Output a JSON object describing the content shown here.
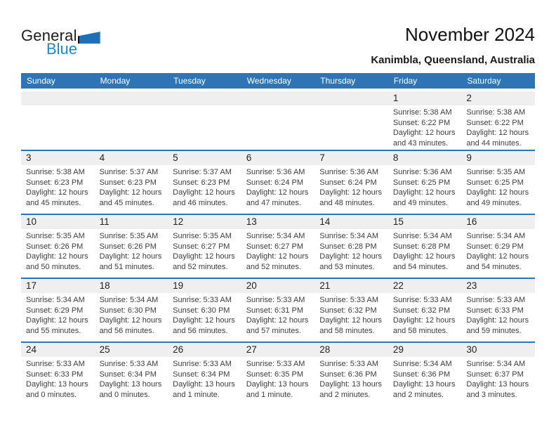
{
  "logo": {
    "part1": "General",
    "part2": "Blue"
  },
  "header": {
    "title": "November 2024",
    "subtitle": "Kanimbla, Queensland, Australia"
  },
  "colors": {
    "header_blue": "#2e75b6",
    "row_divider_blue": "#2e75b6",
    "day_band_gray": "#efefef",
    "logo_blue": "#1e87cc",
    "logo_triangle_blue": "#1d70b8"
  },
  "calendar": {
    "weekdays": [
      "Sunday",
      "Monday",
      "Tuesday",
      "Wednesday",
      "Thursday",
      "Friday",
      "Saturday"
    ],
    "weeks": [
      [
        null,
        null,
        null,
        null,
        null,
        {
          "day": "1",
          "sunrise": "Sunrise: 5:38 AM",
          "sunset": "Sunset: 6:22 PM",
          "daylight1": "Daylight: 12 hours",
          "daylight2": "and 43 minutes."
        },
        {
          "day": "2",
          "sunrise": "Sunrise: 5:38 AM",
          "sunset": "Sunset: 6:22 PM",
          "daylight1": "Daylight: 12 hours",
          "daylight2": "and 44 minutes."
        }
      ],
      [
        {
          "day": "3",
          "sunrise": "Sunrise: 5:38 AM",
          "sunset": "Sunset: 6:23 PM",
          "daylight1": "Daylight: 12 hours",
          "daylight2": "and 45 minutes."
        },
        {
          "day": "4",
          "sunrise": "Sunrise: 5:37 AM",
          "sunset": "Sunset: 6:23 PM",
          "daylight1": "Daylight: 12 hours",
          "daylight2": "and 45 minutes."
        },
        {
          "day": "5",
          "sunrise": "Sunrise: 5:37 AM",
          "sunset": "Sunset: 6:23 PM",
          "daylight1": "Daylight: 12 hours",
          "daylight2": "and 46 minutes."
        },
        {
          "day": "6",
          "sunrise": "Sunrise: 5:36 AM",
          "sunset": "Sunset: 6:24 PM",
          "daylight1": "Daylight: 12 hours",
          "daylight2": "and 47 minutes."
        },
        {
          "day": "7",
          "sunrise": "Sunrise: 5:36 AM",
          "sunset": "Sunset: 6:24 PM",
          "daylight1": "Daylight: 12 hours",
          "daylight2": "and 48 minutes."
        },
        {
          "day": "8",
          "sunrise": "Sunrise: 5:36 AM",
          "sunset": "Sunset: 6:25 PM",
          "daylight1": "Daylight: 12 hours",
          "daylight2": "and 49 minutes."
        },
        {
          "day": "9",
          "sunrise": "Sunrise: 5:35 AM",
          "sunset": "Sunset: 6:25 PM",
          "daylight1": "Daylight: 12 hours",
          "daylight2": "and 49 minutes."
        }
      ],
      [
        {
          "day": "10",
          "sunrise": "Sunrise: 5:35 AM",
          "sunset": "Sunset: 6:26 PM",
          "daylight1": "Daylight: 12 hours",
          "daylight2": "and 50 minutes."
        },
        {
          "day": "11",
          "sunrise": "Sunrise: 5:35 AM",
          "sunset": "Sunset: 6:26 PM",
          "daylight1": "Daylight: 12 hours",
          "daylight2": "and 51 minutes."
        },
        {
          "day": "12",
          "sunrise": "Sunrise: 5:35 AM",
          "sunset": "Sunset: 6:27 PM",
          "daylight1": "Daylight: 12 hours",
          "daylight2": "and 52 minutes."
        },
        {
          "day": "13",
          "sunrise": "Sunrise: 5:34 AM",
          "sunset": "Sunset: 6:27 PM",
          "daylight1": "Daylight: 12 hours",
          "daylight2": "and 52 minutes."
        },
        {
          "day": "14",
          "sunrise": "Sunrise: 5:34 AM",
          "sunset": "Sunset: 6:28 PM",
          "daylight1": "Daylight: 12 hours",
          "daylight2": "and 53 minutes."
        },
        {
          "day": "15",
          "sunrise": "Sunrise: 5:34 AM",
          "sunset": "Sunset: 6:28 PM",
          "daylight1": "Daylight: 12 hours",
          "daylight2": "and 54 minutes."
        },
        {
          "day": "16",
          "sunrise": "Sunrise: 5:34 AM",
          "sunset": "Sunset: 6:29 PM",
          "daylight1": "Daylight: 12 hours",
          "daylight2": "and 54 minutes."
        }
      ],
      [
        {
          "day": "17",
          "sunrise": "Sunrise: 5:34 AM",
          "sunset": "Sunset: 6:29 PM",
          "daylight1": "Daylight: 12 hours",
          "daylight2": "and 55 minutes."
        },
        {
          "day": "18",
          "sunrise": "Sunrise: 5:34 AM",
          "sunset": "Sunset: 6:30 PM",
          "daylight1": "Daylight: 12 hours",
          "daylight2": "and 56 minutes."
        },
        {
          "day": "19",
          "sunrise": "Sunrise: 5:33 AM",
          "sunset": "Sunset: 6:30 PM",
          "daylight1": "Daylight: 12 hours",
          "daylight2": "and 56 minutes."
        },
        {
          "day": "20",
          "sunrise": "Sunrise: 5:33 AM",
          "sunset": "Sunset: 6:31 PM",
          "daylight1": "Daylight: 12 hours",
          "daylight2": "and 57 minutes."
        },
        {
          "day": "21",
          "sunrise": "Sunrise: 5:33 AM",
          "sunset": "Sunset: 6:32 PM",
          "daylight1": "Daylight: 12 hours",
          "daylight2": "and 58 minutes."
        },
        {
          "day": "22",
          "sunrise": "Sunrise: 5:33 AM",
          "sunset": "Sunset: 6:32 PM",
          "daylight1": "Daylight: 12 hours",
          "daylight2": "and 58 minutes."
        },
        {
          "day": "23",
          "sunrise": "Sunrise: 5:33 AM",
          "sunset": "Sunset: 6:33 PM",
          "daylight1": "Daylight: 12 hours",
          "daylight2": "and 59 minutes."
        }
      ],
      [
        {
          "day": "24",
          "sunrise": "Sunrise: 5:33 AM",
          "sunset": "Sunset: 6:33 PM",
          "daylight1": "Daylight: 13 hours",
          "daylight2": "and 0 minutes."
        },
        {
          "day": "25",
          "sunrise": "Sunrise: 5:33 AM",
          "sunset": "Sunset: 6:34 PM",
          "daylight1": "Daylight: 13 hours",
          "daylight2": "and 0 minutes."
        },
        {
          "day": "26",
          "sunrise": "Sunrise: 5:33 AM",
          "sunset": "Sunset: 6:34 PM",
          "daylight1": "Daylight: 13 hours",
          "daylight2": "and 1 minute."
        },
        {
          "day": "27",
          "sunrise": "Sunrise: 5:33 AM",
          "sunset": "Sunset: 6:35 PM",
          "daylight1": "Daylight: 13 hours",
          "daylight2": "and 1 minute."
        },
        {
          "day": "28",
          "sunrise": "Sunrise: 5:33 AM",
          "sunset": "Sunset: 6:36 PM",
          "daylight1": "Daylight: 13 hours",
          "daylight2": "and 2 minutes."
        },
        {
          "day": "29",
          "sunrise": "Sunrise: 5:34 AM",
          "sunset": "Sunset: 6:36 PM",
          "daylight1": "Daylight: 13 hours",
          "daylight2": "and 2 minutes."
        },
        {
          "day": "30",
          "sunrise": "Sunrise: 5:34 AM",
          "sunset": "Sunset: 6:37 PM",
          "daylight1": "Daylight: 13 hours",
          "daylight2": "and 3 minutes."
        }
      ]
    ]
  }
}
